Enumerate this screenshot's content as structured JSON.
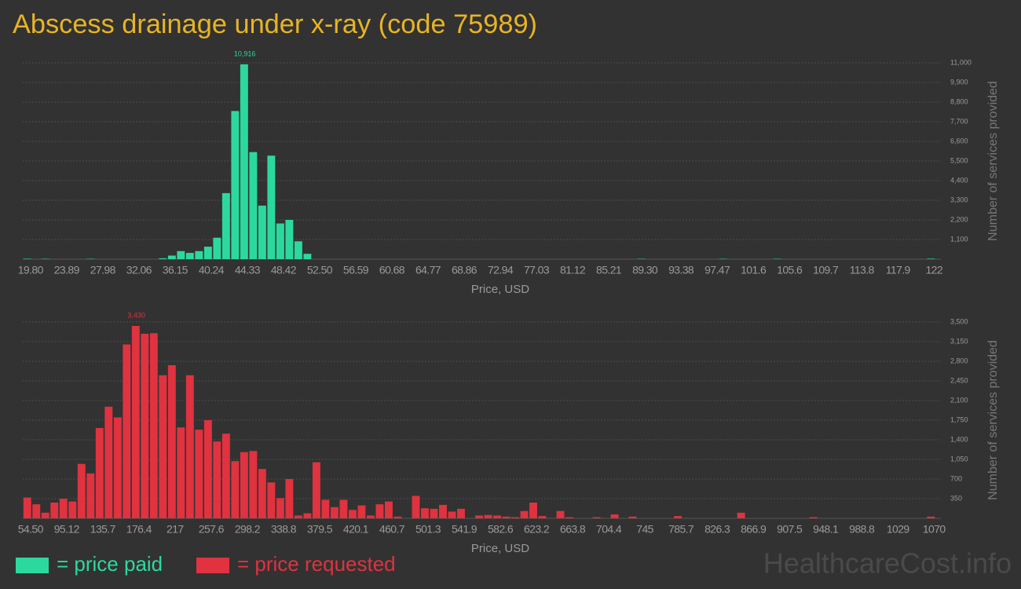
{
  "title": "Abscess drainage under x-ray (code 75989)",
  "watermark": "HealthcareCost.info",
  "chart_data": [
    {
      "type": "bar",
      "x_label": "Price, USD",
      "y_label": "Number of services provided",
      "grid": true,
      "ylim": [
        0,
        11000
      ],
      "yticks": [
        {
          "value": 1100,
          "label": "1,100"
        },
        {
          "value": 2200,
          "label": "2,200"
        },
        {
          "value": 3300,
          "label": "3,300"
        },
        {
          "value": 4400,
          "label": "4,400"
        },
        {
          "value": 5500,
          "label": "5,500"
        },
        {
          "value": 6600,
          "label": "6,600"
        },
        {
          "value": 7700,
          "label": "7,700"
        },
        {
          "value": 8800,
          "label": "8,800"
        },
        {
          "value": 9900,
          "label": "9,900"
        },
        {
          "value": 11000,
          "label": "11,000"
        }
      ],
      "categories": [
        "19.80",
        null,
        null,
        null,
        "23.89",
        null,
        null,
        null,
        "27.98",
        null,
        null,
        null,
        "32.06",
        null,
        null,
        null,
        "36.15",
        null,
        null,
        null,
        "40.24",
        null,
        null,
        null,
        "44.33",
        null,
        null,
        null,
        "48.42",
        null,
        null,
        null,
        "52.50",
        null,
        null,
        null,
        "56.59",
        null,
        null,
        null,
        "60.68",
        null,
        null,
        null,
        "64.77",
        null,
        null,
        null,
        "68.86",
        null,
        null,
        null,
        "72.94",
        null,
        null,
        null,
        "77.03",
        null,
        null,
        null,
        "81.12",
        null,
        null,
        null,
        "85.21",
        null,
        null,
        null,
        "89.30",
        null,
        null,
        null,
        "93.38",
        null,
        null,
        null,
        "97.47",
        null,
        null,
        null,
        "101.6",
        null,
        null,
        null,
        "105.6",
        null,
        null,
        null,
        "109.7",
        null,
        null,
        null,
        "113.8",
        null,
        null,
        null,
        "117.9",
        null,
        null,
        null,
        "122"
      ],
      "series": [
        {
          "name": "= price paid",
          "color": "#2bd99f",
          "values": [
            25,
            0,
            20,
            0,
            0,
            0,
            0,
            20,
            0,
            0,
            0,
            0,
            0,
            0,
            0,
            50,
            200,
            450,
            350,
            450,
            700,
            1200,
            3700,
            8300,
            10916,
            6000,
            3000,
            5800,
            2000,
            2200,
            1000,
            300,
            0,
            0,
            0,
            0,
            0,
            0,
            0,
            0,
            0,
            0,
            0,
            0,
            0,
            0,
            0,
            0,
            0,
            0,
            0,
            0,
            0,
            0,
            0,
            0,
            0,
            0,
            0,
            0,
            0,
            0,
            0,
            0,
            0,
            0,
            0,
            0,
            20,
            0,
            0,
            0,
            0,
            0,
            0,
            0,
            0,
            20,
            0,
            0,
            0,
            0,
            0,
            20,
            0,
            0,
            0,
            0,
            0,
            0,
            0,
            0,
            0,
            0,
            0,
            0,
            0,
            0,
            0,
            0,
            30
          ],
          "value_labels": [
            null,
            null,
            null,
            null,
            null,
            null,
            null,
            null,
            null,
            null,
            null,
            null,
            null,
            null,
            null,
            null,
            null,
            null,
            null,
            null,
            null,
            null,
            null,
            null,
            "10,916",
            null,
            null,
            null,
            null,
            null,
            null,
            null,
            null,
            null,
            null,
            null,
            null,
            null,
            null,
            null,
            null,
            null,
            null,
            null,
            null,
            null,
            null,
            null,
            null,
            null,
            null,
            null,
            null,
            null,
            null,
            null,
            null,
            null,
            null,
            null,
            null,
            null,
            null,
            null,
            null,
            null,
            null,
            null,
            null,
            null,
            null,
            null,
            null,
            null,
            null,
            null,
            null,
            null,
            null,
            null,
            null,
            null,
            null,
            null,
            null,
            null,
            null,
            null,
            null,
            null,
            null,
            null,
            null,
            null,
            null,
            null,
            null,
            null,
            null,
            null,
            null
          ]
        }
      ]
    },
    {
      "type": "bar",
      "x_label": "Price, USD",
      "y_label": "Number of services provided",
      "grid": true,
      "ylim": [
        0,
        3500
      ],
      "yticks": [
        350,
        700,
        {
          "value": 1050,
          "label": "1,050"
        },
        {
          "value": 1400,
          "label": "1,400"
        },
        {
          "value": 1750,
          "label": "1,750"
        },
        {
          "value": 2100,
          "label": "2,100"
        },
        {
          "value": 2450,
          "label": "2,450"
        },
        {
          "value": 2800,
          "label": "2,800"
        },
        {
          "value": 3150,
          "label": "3,150"
        },
        {
          "value": 3500,
          "label": "3,500"
        }
      ],
      "categories": [
        "54.50",
        null,
        null,
        null,
        "95.12",
        null,
        null,
        null,
        "135.7",
        null,
        null,
        null,
        "176.4",
        null,
        null,
        null,
        "217",
        null,
        null,
        null,
        "257.6",
        null,
        null,
        null,
        "298.2",
        null,
        null,
        null,
        "338.8",
        null,
        null,
        null,
        "379.5",
        null,
        null,
        null,
        "420.1",
        null,
        null,
        null,
        "460.7",
        null,
        null,
        null,
        "501.3",
        null,
        null,
        null,
        "541.9",
        null,
        null,
        null,
        "582.6",
        null,
        null,
        null,
        "623.2",
        null,
        null,
        null,
        "663.8",
        null,
        null,
        null,
        "704.4",
        null,
        null,
        null,
        "745",
        null,
        null,
        null,
        "785.7",
        null,
        null,
        null,
        "826.3",
        null,
        null,
        null,
        "866.9",
        null,
        null,
        null,
        "907.5",
        null,
        null,
        null,
        "948.1",
        null,
        null,
        null,
        "988.8",
        null,
        null,
        null,
        "1029",
        null,
        null,
        null,
        "1070"
      ],
      "series": [
        {
          "name": "= price requested",
          "color": "#e0323f",
          "values": [
            370,
            250,
            100,
            280,
            350,
            300,
            970,
            800,
            1610,
            1990,
            1800,
            3100,
            3430,
            3290,
            3300,
            2550,
            2730,
            1620,
            2550,
            1580,
            1750,
            1370,
            1510,
            1020,
            1180,
            1200,
            880,
            640,
            360,
            700,
            50,
            90,
            1000,
            330,
            200,
            330,
            150,
            230,
            50,
            250,
            300,
            30,
            0,
            400,
            180,
            170,
            240,
            120,
            170,
            0,
            50,
            60,
            50,
            30,
            20,
            130,
            280,
            40,
            0,
            130,
            20,
            0,
            0,
            20,
            0,
            70,
            0,
            30,
            0,
            0,
            0,
            0,
            40,
            0,
            0,
            0,
            0,
            0,
            0,
            100,
            0,
            0,
            0,
            0,
            0,
            0,
            0,
            20,
            0,
            0,
            0,
            0,
            0,
            0,
            0,
            0,
            0,
            0,
            0,
            0,
            30
          ],
          "value_labels": [
            null,
            null,
            null,
            null,
            null,
            null,
            null,
            null,
            null,
            null,
            null,
            null,
            "3,430",
            null,
            null,
            null,
            null,
            null,
            null,
            null,
            null,
            null,
            null,
            null,
            null,
            null,
            null,
            null,
            null,
            null,
            null,
            null,
            null,
            null,
            null,
            null,
            null,
            null,
            null,
            null,
            null,
            null,
            null,
            null,
            null,
            null,
            null,
            null,
            null,
            null,
            null,
            null,
            null,
            null,
            null,
            null,
            null,
            null,
            null,
            null,
            null,
            null,
            null,
            null,
            null,
            null,
            null,
            null,
            null,
            null,
            null,
            null,
            null,
            null,
            null,
            null,
            null,
            null,
            null,
            null,
            null,
            null,
            null,
            null,
            null,
            null,
            null,
            null,
            null,
            null,
            null,
            null,
            null,
            null,
            null,
            null,
            null,
            null,
            null,
            null,
            null
          ]
        }
      ]
    }
  ]
}
